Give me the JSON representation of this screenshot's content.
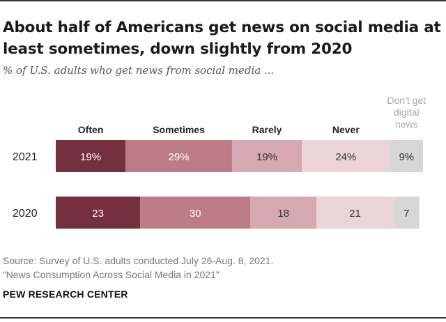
{
  "title": "About half of Americans get news on social media at least sometimes, down slightly from 2020",
  "subtitle": "% of U.S. adults who get news from social media ...",
  "source_line1": "Source: Survey of U.S. adults conducted July 26-Aug. 8, 2021.",
  "source_line2": "“News Consumption Across Social Media in 2021”",
  "org": "PEW RESEARCH CENTER",
  "colors": {
    "Often": "#74303f",
    "Sometimes": "#bd7b87",
    "Rarely": "#d6a8b1",
    "Never": "#ecd3d7",
    "Don't get digital news": "#d7d7d7"
  },
  "chart_data": {
    "type": "bar",
    "orientation": "horizontal",
    "stacked": true,
    "categories": [
      "2021",
      "2020"
    ],
    "series": [
      {
        "name": "Often",
        "values": [
          19,
          23
        ],
        "labels": [
          "19%",
          "23"
        ]
      },
      {
        "name": "Sometimes",
        "values": [
          29,
          30
        ],
        "labels": [
          "29%",
          "30"
        ]
      },
      {
        "name": "Rarely",
        "values": [
          19,
          18
        ],
        "labels": [
          "19%",
          "18"
        ]
      },
      {
        "name": "Never",
        "values": [
          24,
          21
        ],
        "labels": [
          "24%",
          "21"
        ]
      },
      {
        "name": "Don't get digital news",
        "legend_lines": [
          "Don't get",
          "digital",
          "news"
        ],
        "values": [
          9,
          7
        ],
        "labels": [
          "9%",
          "7"
        ]
      }
    ],
    "legend": "top",
    "grid": false
  }
}
